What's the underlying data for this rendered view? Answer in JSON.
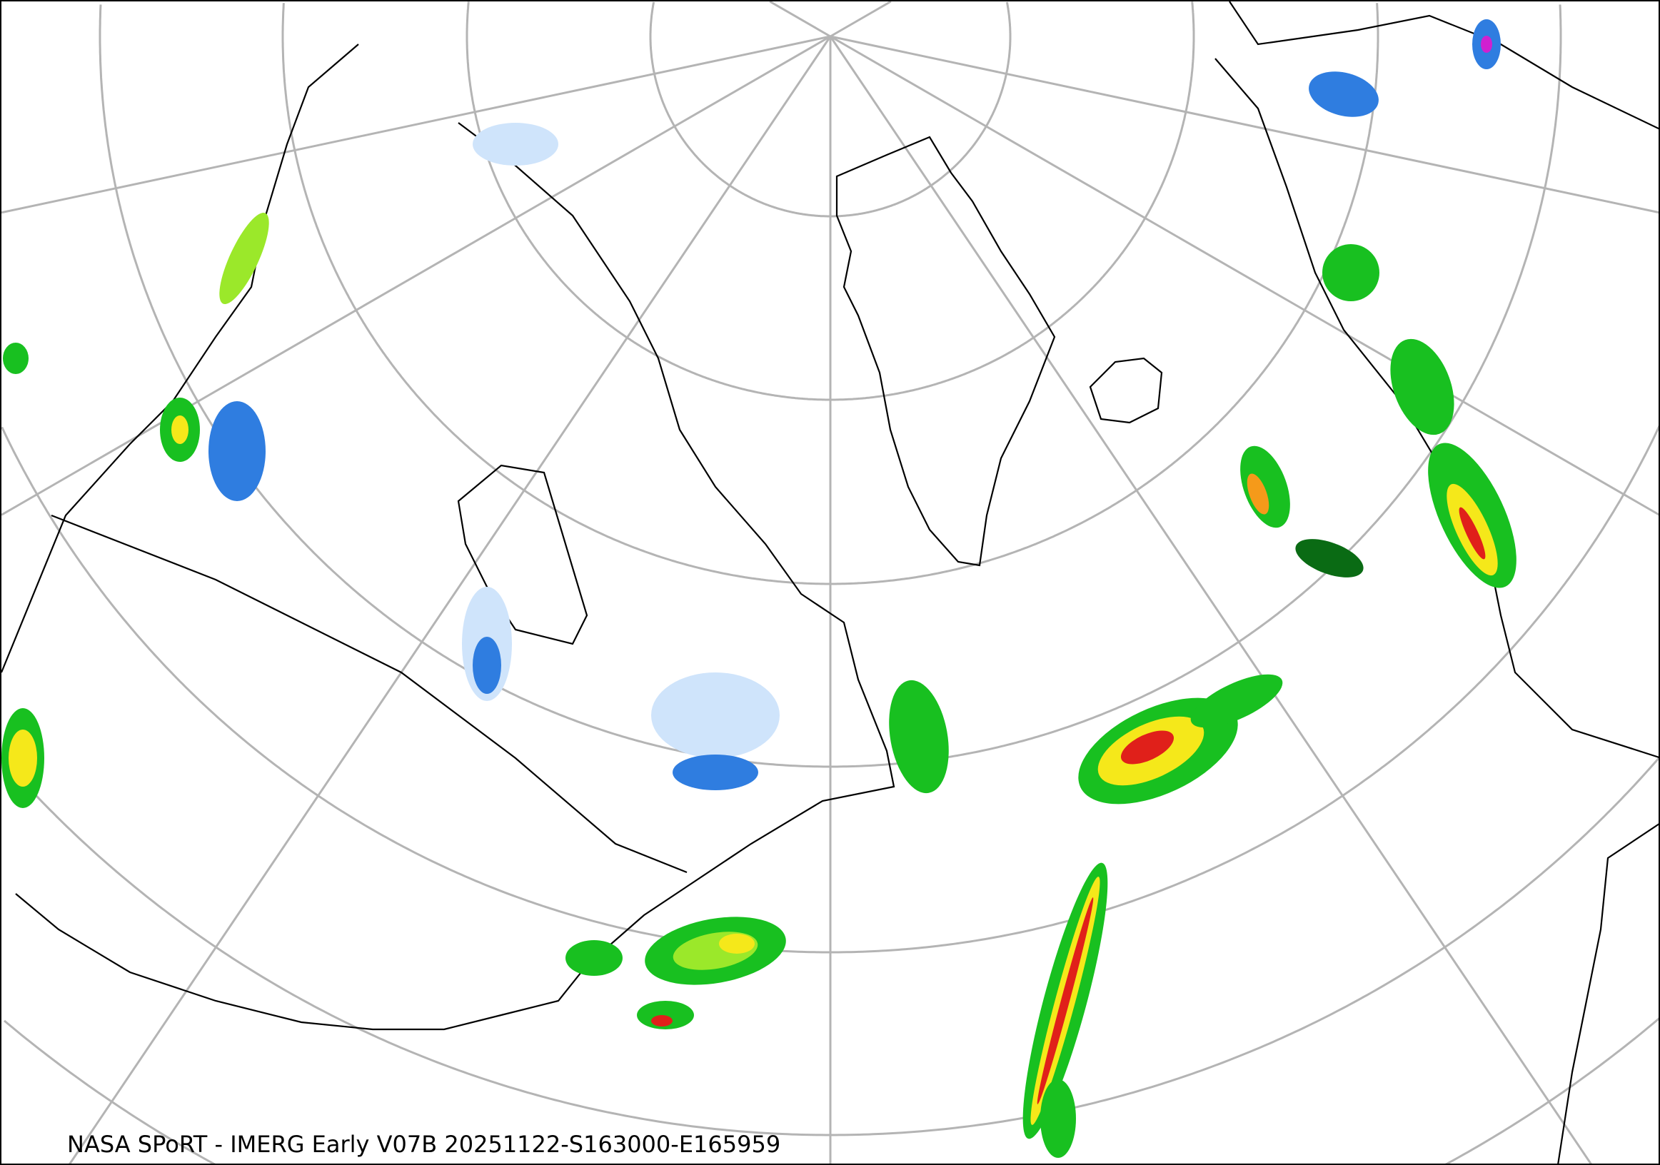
{
  "caption": "NASA SPoRT - IMERG Early V07B 20251122-S163000-E165959",
  "colors": {
    "graticule": "#b4b4b4",
    "coastline": "#000000",
    "precip_light_blue": "#cfe4fb",
    "precip_blue": "#2f7de0",
    "precip_dark_green": "#0a6b14",
    "precip_green": "#18c020",
    "precip_light_green": "#9be82a",
    "precip_yellow": "#f5e81a",
    "precip_orange": "#f59a1a",
    "precip_red": "#e0201a",
    "precip_magenta": "#d020d0"
  }
}
